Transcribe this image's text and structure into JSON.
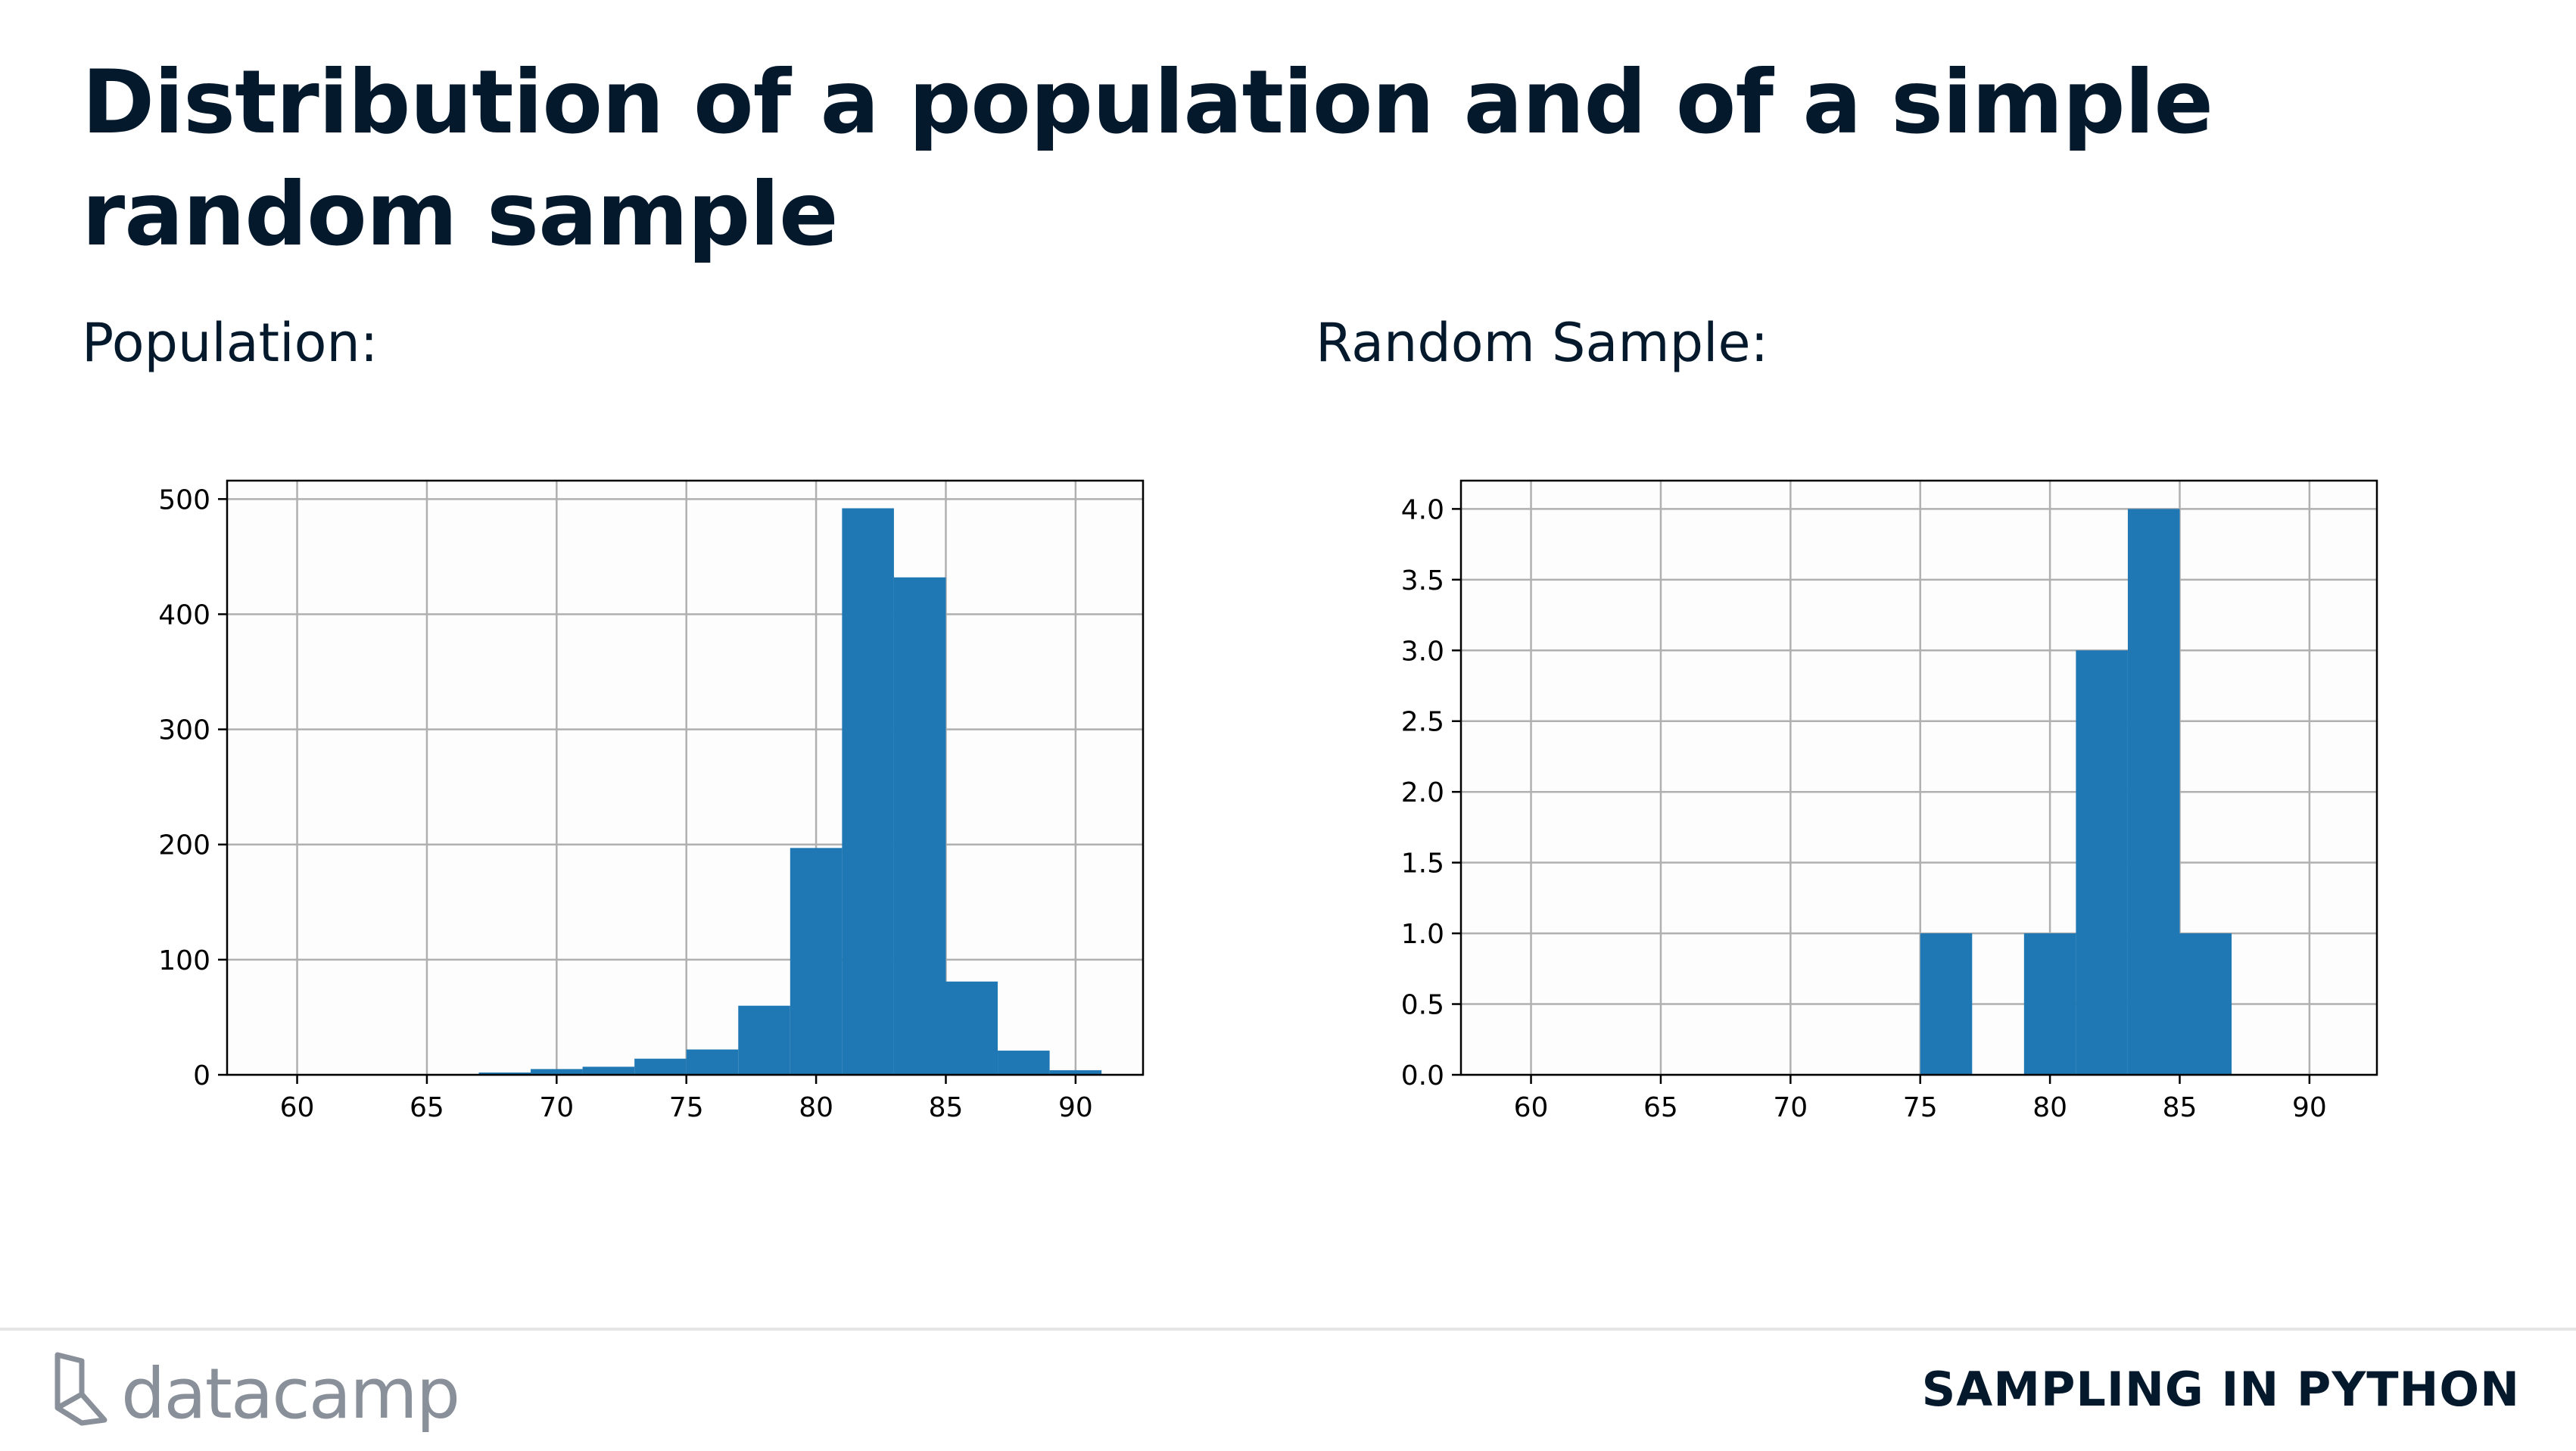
{
  "slide": {
    "title": "Distribution of a population and of a simple random sample"
  },
  "panels": {
    "left_label": "Population:",
    "right_label": "Random Sample:"
  },
  "footer": {
    "logo_text": "datacamp",
    "course": "SAMPLING IN PYTHON"
  },
  "colors": {
    "bar": "#1f77b4",
    "grid": "#b0b0b0",
    "title": "#05192d",
    "logo": "#8a9099"
  },
  "chart_data": [
    {
      "type": "bar",
      "histogram": true,
      "grid": true,
      "xlim": [
        57.3,
        92.6
      ],
      "ylim": [
        0,
        516
      ],
      "xticks": [
        "60",
        "65",
        "70",
        "75",
        "80",
        "85",
        "90"
      ],
      "xtick_values": [
        60,
        65,
        70,
        75,
        80,
        85,
        90
      ],
      "yticks": [
        "0",
        "100",
        "200",
        "300",
        "400",
        "500"
      ],
      "ytick_values": [
        0,
        100,
        200,
        300,
        400,
        500
      ],
      "bin_edges": [
        59,
        61,
        63,
        65,
        67,
        69,
        71,
        73,
        75,
        77,
        79,
        81,
        83,
        85,
        87,
        89,
        91
      ],
      "values": [
        0,
        0,
        0,
        0,
        2,
        5,
        7,
        14,
        22,
        60,
        197,
        492,
        432,
        81,
        21,
        4
      ]
    },
    {
      "type": "bar",
      "histogram": true,
      "grid": true,
      "xlim": [
        57.3,
        92.6
      ],
      "ylim": [
        0,
        4.2
      ],
      "xticks": [
        "60",
        "65",
        "70",
        "75",
        "80",
        "85",
        "90"
      ],
      "xtick_values": [
        60,
        65,
        70,
        75,
        80,
        85,
        90
      ],
      "yticks": [
        "0.0",
        "0.5",
        "1.0",
        "1.5",
        "2.0",
        "2.5",
        "3.0",
        "3.5",
        "4.0"
      ],
      "ytick_values": [
        0,
        0.5,
        1,
        1.5,
        2,
        2.5,
        3,
        3.5,
        4
      ],
      "bin_edges": [
        75,
        77,
        79,
        81,
        83,
        85,
        87
      ],
      "values": [
        1,
        0,
        1,
        3,
        4,
        1
      ]
    }
  ]
}
